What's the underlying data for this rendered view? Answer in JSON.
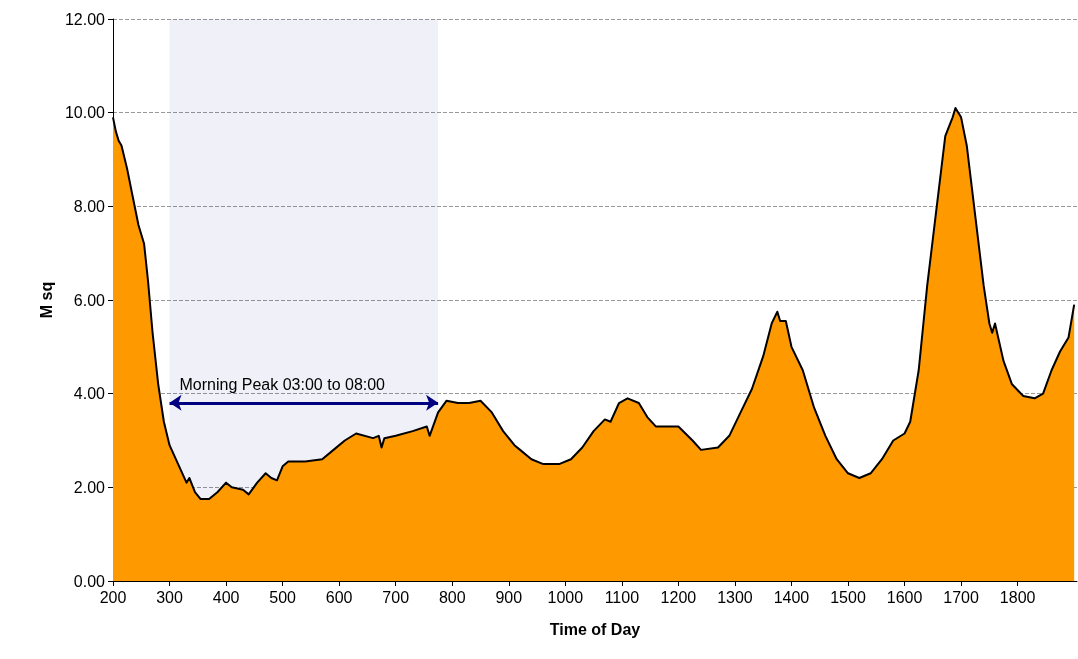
{
  "chart_data": {
    "type": "area",
    "xlabel": "Time of Day",
    "ylabel": "M sq",
    "x": [
      200,
      205,
      210,
      215,
      225,
      235,
      245,
      255,
      262,
      270,
      280,
      290,
      300,
      315,
      330,
      335,
      345,
      355,
      370,
      385,
      400,
      410,
      430,
      440,
      455,
      470,
      480,
      490,
      500,
      510,
      540,
      570,
      590,
      610,
      630,
      660,
      670,
      675,
      680,
      700,
      730,
      755,
      760,
      775,
      790,
      810,
      830,
      850,
      870,
      890,
      910,
      920,
      940,
      960,
      990,
      1010,
      1030,
      1050,
      1070,
      1080,
      1095,
      1110,
      1130,
      1145,
      1160,
      1180,
      1200,
      1225,
      1240,
      1270,
      1290,
      1310,
      1330,
      1350,
      1365,
      1375,
      1380,
      1390,
      1400,
      1420,
      1440,
      1460,
      1480,
      1500,
      1520,
      1540,
      1560,
      1580,
      1600,
      1610,
      1625,
      1640,
      1655,
      1665,
      1672,
      1685,
      1690,
      1700,
      1710,
      1725,
      1740,
      1750,
      1755,
      1760,
      1775,
      1790,
      1810,
      1830,
      1845,
      1860,
      1875,
      1890,
      1900
    ],
    "series": [
      {
        "color": "#ff9900",
        "values": [
          9.9,
          9.6,
          9.4,
          9.3,
          8.8,
          8.2,
          7.6,
          7.2,
          6.4,
          5.3,
          4.2,
          3.4,
          2.9,
          2.5,
          2.1,
          2.2,
          1.9,
          1.75,
          1.75,
          1.9,
          2.1,
          2.0,
          1.95,
          1.85,
          2.1,
          2.3,
          2.2,
          2.15,
          2.45,
          2.55,
          2.55,
          2.6,
          2.8,
          3.0,
          3.15,
          3.05,
          3.1,
          2.85,
          3.05,
          3.1,
          3.2,
          3.3,
          3.1,
          3.6,
          3.85,
          3.8,
          3.8,
          3.85,
          3.6,
          3.2,
          2.9,
          2.8,
          2.6,
          2.5,
          2.5,
          2.6,
          2.85,
          3.2,
          3.45,
          3.4,
          3.8,
          3.9,
          3.8,
          3.5,
          3.3,
          3.3,
          3.3,
          3.0,
          2.8,
          2.85,
          3.1,
          3.6,
          4.1,
          4.8,
          5.5,
          5.75,
          5.55,
          5.55,
          5.0,
          4.5,
          3.7,
          3.1,
          2.6,
          2.3,
          2.2,
          2.3,
          2.6,
          3.0,
          3.15,
          3.4,
          4.5,
          6.3,
          7.8,
          8.8,
          9.5,
          9.9,
          10.1,
          9.9,
          9.3,
          7.8,
          6.3,
          5.5,
          5.3,
          5.5,
          4.7,
          4.2,
          3.95,
          3.9,
          4.0,
          4.5,
          4.9,
          5.2,
          5.9
        ]
      }
    ],
    "xlim": [
      200,
      1905
    ],
    "xticks": [
      200,
      300,
      400,
      500,
      600,
      700,
      800,
      900,
      1000,
      1100,
      1200,
      1300,
      1400,
      1500,
      1600,
      1700,
      1800
    ],
    "ylim": [
      0,
      12
    ],
    "yticks": [
      {
        "value": 0,
        "label": "0.00"
      },
      {
        "value": 2,
        "label": "2.00"
      },
      {
        "value": 4,
        "label": "4.00"
      },
      {
        "value": 6,
        "label": "6.00"
      },
      {
        "value": 8,
        "label": "8.00"
      },
      {
        "value": 10,
        "label": "10.00"
      },
      {
        "value": 12,
        "label": "12.00"
      }
    ],
    "grid": "y",
    "marker": "none",
    "line_style": "solid",
    "bands": [
      {
        "axis": "x",
        "from": 300,
        "to": 775,
        "label": "Morning Peak 03:00 to 08:00",
        "color": "#000080"
      }
    ]
  }
}
